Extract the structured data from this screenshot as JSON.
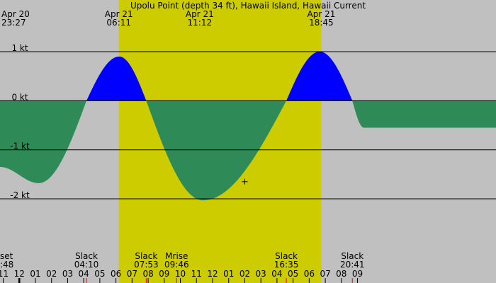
{
  "chart_data": {
    "type": "area",
    "title": "Upolu Point (depth 34 ft), Hawaii Island, Hawaii Current",
    "unit": "kt",
    "x_range_hours": [
      -1.2,
      29.6
    ],
    "ylim": [
      -2.85,
      1.75
    ],
    "y_ticks": [
      {
        "value": 1,
        "label": "1 kt"
      },
      {
        "value": 0,
        "label": "0 kt"
      },
      {
        "value": -1,
        "label": "-1 kt"
      },
      {
        "value": -2,
        "label": "-2 kt"
      }
    ],
    "daylight_hours": [
      6.18,
      18.75
    ],
    "colors": {
      "background": "#c0c0c0",
      "daylight": "#cccc00",
      "flood": "#0000ff",
      "ebb": "#2e8b57",
      "tick_red": "#ff0000"
    },
    "top_labels": [
      {
        "hour": -0.55,
        "date": "Apr 20",
        "time": "23:27"
      },
      {
        "hour": 6.18,
        "date": "Apr 21",
        "time": "06:11"
      },
      {
        "hour": 11.2,
        "date": "Apr 21",
        "time": "11:12"
      },
      {
        "hour": 18.75,
        "date": "Apr 21",
        "time": "18:45"
      }
    ],
    "current_points": [
      {
        "hour": -1.2,
        "value": -1.35
      },
      {
        "hour": 1.2,
        "value": -1.68
      },
      {
        "hour": 4.17,
        "value": 0
      },
      {
        "hour": 6.2,
        "value": 0.9
      },
      {
        "hour": 7.88,
        "value": 0
      },
      {
        "hour": 11.4,
        "value": -2.03
      },
      {
        "hour": 16.58,
        "value": 0
      },
      {
        "hour": 18.65,
        "value": 1.0
      },
      {
        "hour": 20.68,
        "value": 0
      },
      {
        "hour": 21.4,
        "value": -0.55
      }
    ],
    "bottom_events": [
      {
        "hour": -1.0,
        "name": "set",
        "time": ":48"
      },
      {
        "hour": 4.17,
        "name": "Slack",
        "time": "04:10"
      },
      {
        "hour": 7.88,
        "name": "Slack",
        "time": "07:53"
      },
      {
        "hour": 9.77,
        "name": "Mrise",
        "time": "09:46"
      },
      {
        "hour": 16.58,
        "name": "Slack",
        "time": "16:35"
      },
      {
        "hour": 20.68,
        "name": "Slack",
        "time": "20:41"
      }
    ],
    "hour_axis": [
      {
        "hour": -1,
        "label": "11"
      },
      {
        "hour": 0,
        "label": "12"
      },
      {
        "hour": 1,
        "label": "01"
      },
      {
        "hour": 2,
        "label": "02"
      },
      {
        "hour": 3,
        "label": "03"
      },
      {
        "hour": 4,
        "label": "04"
      },
      {
        "hour": 5,
        "label": "05"
      },
      {
        "hour": 6,
        "label": "06"
      },
      {
        "hour": 7,
        "label": "07"
      },
      {
        "hour": 8,
        "label": "08"
      },
      {
        "hour": 9,
        "label": "09"
      },
      {
        "hour": 10,
        "label": "10"
      },
      {
        "hour": 11,
        "label": "11"
      },
      {
        "hour": 12,
        "label": "12"
      },
      {
        "hour": 13,
        "label": "01"
      },
      {
        "hour": 14,
        "label": "02"
      },
      {
        "hour": 15,
        "label": "03"
      },
      {
        "hour": 16,
        "label": "04"
      },
      {
        "hour": 17,
        "label": "05"
      },
      {
        "hour": 18,
        "label": "06"
      },
      {
        "hour": 19,
        "label": "07"
      },
      {
        "hour": 20,
        "label": "08"
      },
      {
        "hour": 21,
        "label": "09"
      }
    ],
    "event_tick_hours": [
      4.17,
      7.88,
      9.77,
      16.58,
      20.68
    ],
    "marker": {
      "hour": 14.0,
      "value": -1.65
    }
  }
}
